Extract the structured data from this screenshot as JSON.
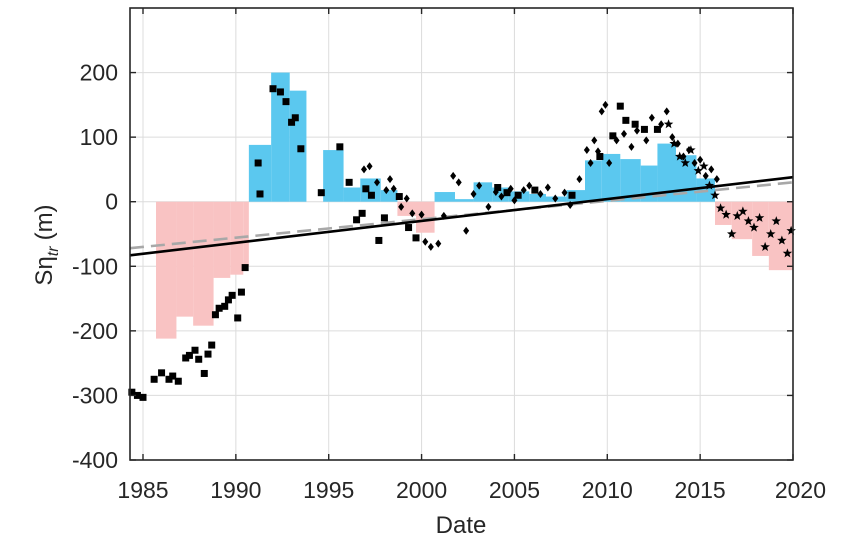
{
  "chart_data": {
    "type": "scatter",
    "title": "",
    "xlabel": "Date",
    "ylabel": "Sη",
    "ylabel_subscript": "tr",
    "ylabel_unit": "(m)",
    "xlim": [
      1984.3,
      2020
    ],
    "ylim": [
      -400,
      300
    ],
    "x_ticks": [
      1985,
      1990,
      1995,
      2000,
      2005,
      2010,
      2015,
      2020
    ],
    "x_tick_labels": [
      "1985",
      "1990",
      "1995",
      "2000",
      "2005",
      "2010",
      "2015",
      "2020"
    ],
    "y_ticks": [
      -400,
      -300,
      -200,
      -100,
      0,
      100,
      200
    ],
    "y_tick_labels": [
      "-400",
      "-300",
      "-200",
      "-100",
      "0",
      "100",
      "200"
    ],
    "grid": true,
    "colors": {
      "positive_bar": "#5bc8ef",
      "negative_bar": "#f9c3c3",
      "points": "#000000",
      "trend_solid": "#000000",
      "trend_dashed": "#a8a8a8",
      "grid": "#dcdcdc"
    },
    "bars": [
      {
        "x0": 1985.7,
        "x1": 1986.8,
        "value": -212
      },
      {
        "x0": 1986.8,
        "x1": 1987.7,
        "value": -178
      },
      {
        "x0": 1987.7,
        "x1": 1988.8,
        "value": -192
      },
      {
        "x0": 1988.8,
        "x1": 1989.7,
        "value": -118
      },
      {
        "x0": 1989.7,
        "x1": 1990.4,
        "value": -113
      },
      {
        "x0": 1990.4,
        "x1": 1990.7,
        "value": -100
      },
      {
        "x0": 1990.7,
        "x1": 1991.9,
        "value": 88
      },
      {
        "x0": 1991.9,
        "x1": 1992.9,
        "value": 200
      },
      {
        "x0": 1992.9,
        "x1": 1993.8,
        "value": 172
      },
      {
        "x0": 1994.7,
        "x1": 1995.8,
        "value": 80
      },
      {
        "x0": 1995.8,
        "x1": 1996.7,
        "value": 22
      },
      {
        "x0": 1996.7,
        "x1": 1997.8,
        "value": 36
      },
      {
        "x0": 1997.8,
        "x1": 1998.7,
        "value": 18
      },
      {
        "x0": 1998.7,
        "x1": 1999.7,
        "value": -22
      },
      {
        "x0": 1999.7,
        "x1": 2000.7,
        "value": -48
      },
      {
        "x0": 2000.7,
        "x1": 2001.8,
        "value": 15
      },
      {
        "x0": 2001.8,
        "x1": 2002.8,
        "value": 4
      },
      {
        "x0": 2002.8,
        "x1": 2003.8,
        "value": 30
      },
      {
        "x0": 2003.8,
        "x1": 2004.7,
        "value": 22
      },
      {
        "x0": 2004.7,
        "x1": 2005.8,
        "value": 16
      },
      {
        "x0": 2005.8,
        "x1": 2006.7,
        "value": 12
      },
      {
        "x0": 2006.7,
        "x1": 2007.8,
        "value": 8
      },
      {
        "x0": 2007.8,
        "x1": 2008.8,
        "value": 18
      },
      {
        "x0": 2008.8,
        "x1": 2009.7,
        "value": 64
      },
      {
        "x0": 2009.7,
        "x1": 2010.7,
        "value": 74
      },
      {
        "x0": 2010.7,
        "x1": 2011.8,
        "value": 66
      },
      {
        "x0": 2011.8,
        "x1": 2012.7,
        "value": 56
      },
      {
        "x0": 2012.7,
        "x1": 2013.7,
        "value": 90
      },
      {
        "x0": 2013.7,
        "x1": 2014.8,
        "value": 72
      },
      {
        "x0": 2014.8,
        "x1": 2015.8,
        "value": 36
      },
      {
        "x0": 2015.8,
        "x1": 2016.7,
        "value": -36
      },
      {
        "x0": 2016.7,
        "x1": 2017.8,
        "value": -58
      },
      {
        "x0": 2017.8,
        "x1": 2018.7,
        "value": -84
      },
      {
        "x0": 2018.7,
        "x1": 2020.0,
        "value": -106
      }
    ],
    "trend_solid": {
      "x": [
        1984.3,
        2020
      ],
      "y": [
        -83,
        38
      ]
    },
    "trend_dashed": {
      "x": [
        1984.3,
        2020
      ],
      "y": [
        -72,
        30
      ]
    },
    "series": [
      {
        "marker": "square",
        "x": [
          1984.4,
          1984.7,
          1985.0,
          1985.6,
          1986.0,
          1986.4,
          1986.6,
          1986.9,
          1987.3,
          1987.5,
          1987.8,
          1988.0,
          1988.3,
          1988.5,
          1988.7,
          1988.9,
          1989.1,
          1989.4,
          1989.6,
          1989.8,
          1990.1,
          1990.3,
          1990.5,
          1991.2,
          1991.3,
          1992.0,
          1992.4,
          1992.7,
          1993.0,
          1993.2,
          1993.5,
          1994.6,
          1995.6,
          1996.1,
          1996.5,
          1996.8,
          1997.0,
          1997.3,
          1997.7,
          1998.0,
          1998.8,
          1999.3,
          1999.7,
          2004.1,
          2004.6,
          2005.2,
          2006.1,
          2008.1,
          2009.6,
          2010.3,
          2010.7,
          2011.0,
          2011.5,
          2012.0,
          2012.7
        ],
        "y": [
          -295,
          -300,
          -303,
          -275,
          -265,
          -275,
          -270,
          -278,
          -242,
          -238,
          -230,
          -244,
          -266,
          -236,
          -222,
          -175,
          -165,
          -162,
          -152,
          -145,
          -180,
          -140,
          -102,
          60,
          12,
          175,
          170,
          155,
          123,
          130,
          82,
          14,
          85,
          30,
          -28,
          -18,
          20,
          10,
          -60,
          -25,
          8,
          -40,
          -56,
          22,
          14,
          10,
          18,
          10,
          70,
          102,
          148,
          126,
          120,
          112,
          112
        ]
      },
      {
        "marker": "diamond",
        "x": [
          1996.9,
          1997.2,
          1997.6,
          1998.1,
          1998.3,
          1998.5,
          1998.9,
          1999.2,
          1999.5,
          2000.0,
          2000.2,
          2000.5,
          2000.9,
          2001.2,
          2001.7,
          2002.0,
          2002.4,
          2002.8,
          2003.1,
          2003.6,
          2004.0,
          2004.3,
          2004.8,
          2005.0,
          2005.5,
          2005.8,
          2006.4,
          2006.8,
          2007.2,
          2007.7,
          2008.0,
          2008.5,
          2008.9,
          2009.1,
          2009.3,
          2009.5,
          2009.7,
          2009.9,
          2010.1,
          2010.5,
          2010.9,
          2011.3,
          2011.6,
          2012.1,
          2012.4,
          2012.9,
          2013.2,
          2013.5,
          2013.8,
          2014.1,
          2014.4,
          2014.7,
          2015.0,
          2015.3,
          2015.6,
          2015.9
        ],
        "y": [
          50,
          55,
          30,
          18,
          35,
          20,
          -8,
          5,
          -18,
          -20,
          -62,
          -70,
          -65,
          -22,
          40,
          30,
          -45,
          12,
          25,
          -8,
          15,
          8,
          20,
          2,
          18,
          25,
          12,
          22,
          5,
          14,
          -5,
          35,
          80,
          60,
          95,
          78,
          140,
          150,
          60,
          95,
          105,
          85,
          110,
          95,
          130,
          120,
          140,
          100,
          90,
          70,
          80,
          60,
          65,
          40,
          50,
          35
        ]
      },
      {
        "marker": "star",
        "x": [
          2013.3,
          2013.6,
          2013.9,
          2014.2,
          2014.5,
          2014.9,
          2015.2,
          2015.5,
          2015.8,
          2016.1,
          2016.4,
          2016.7,
          2017.0,
          2017.3,
          2017.6,
          2017.9,
          2018.2,
          2018.5,
          2018.8,
          2019.1,
          2019.4,
          2019.7,
          2019.9
        ],
        "y": [
          120,
          90,
          70,
          60,
          80,
          48,
          55,
          25,
          10,
          -10,
          -20,
          -50,
          -22,
          -15,
          -30,
          -40,
          -25,
          -70,
          -50,
          -30,
          -60,
          -80,
          -45
        ]
      }
    ]
  }
}
